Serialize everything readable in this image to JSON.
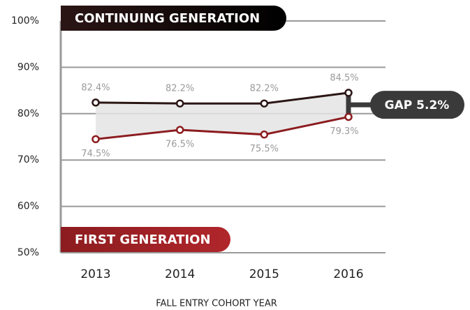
{
  "chart_data": {
    "type": "line",
    "categories": [
      "2013",
      "2014",
      "2015",
      "2016"
    ],
    "series": [
      {
        "name": "CONTINUING GENERATION",
        "color": "#2b1515",
        "values": [
          82.4,
          82.2,
          82.2,
          84.5
        ],
        "value_labels": [
          "82.4%",
          "82.2%",
          "82.2%",
          "84.5%"
        ]
      },
      {
        "name": "FIRST GENERATION",
        "color": "#8c1c1f",
        "values": [
          74.5,
          76.5,
          75.5,
          79.3
        ],
        "value_labels": [
          "74.5%",
          "76.5%",
          "75.5%",
          "79.3%"
        ]
      }
    ],
    "ylim": [
      50,
      100
    ],
    "yticks": [
      {
        "value": 50,
        "label": "50%"
      },
      {
        "value": 60,
        "label": "60%"
      },
      {
        "value": 70,
        "label": "70%"
      },
      {
        "value": 80,
        "label": "80%"
      },
      {
        "value": 90,
        "label": "90%"
      },
      {
        "value": 100,
        "label": "100%"
      }
    ],
    "grid": true,
    "annotation": "GAP 5.2%",
    "x_label": "FALL ENTRY COHORT YEAR"
  }
}
